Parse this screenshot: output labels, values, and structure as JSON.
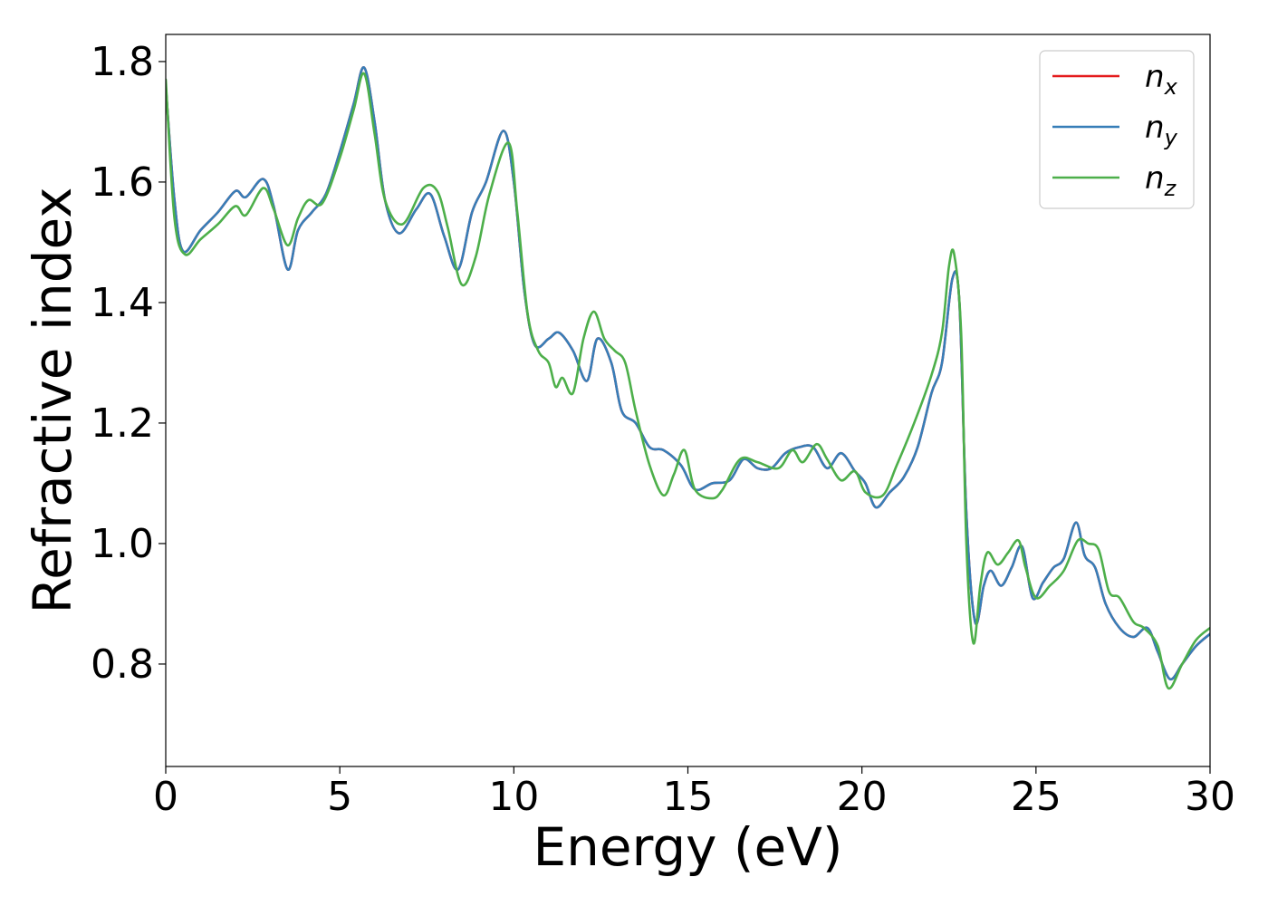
{
  "chart_data": {
    "type": "line",
    "title": "",
    "xlabel": "Energy (eV)",
    "ylabel": "Refractive index",
    "xlim": [
      0,
      30
    ],
    "ylim": [
      0.63,
      1.845
    ],
    "xticks": [
      0,
      5,
      10,
      15,
      20,
      25,
      30
    ],
    "xtick_labels": [
      "0",
      "5",
      "10",
      "15",
      "20",
      "25",
      "30"
    ],
    "yticks": [
      0.8,
      1.0,
      1.2,
      1.4,
      1.6,
      1.8
    ],
    "ytick_labels": [
      "0.8",
      "1.0",
      "1.2",
      "1.4",
      "1.6",
      "1.8"
    ],
    "grid": false,
    "legend_position": "top-right",
    "series": [
      {
        "name": "n",
        "subscript": "x",
        "color": "#e41a1c",
        "x": [
          0,
          0.25,
          0.5,
          1.0,
          1.5,
          2.0,
          2.3,
          2.8,
          3.1,
          3.5,
          3.8,
          4.2,
          4.6,
          5.0,
          5.4,
          5.7,
          6.0,
          6.3,
          6.7,
          7.2,
          7.6,
          8.0,
          8.4,
          8.8,
          9.2,
          9.7,
          10.0,
          10.3,
          10.6,
          11.0,
          11.3,
          11.7,
          12.1,
          12.4,
          12.8,
          13.1,
          13.5,
          13.9,
          14.3,
          14.8,
          15.2,
          15.7,
          16.2,
          16.6,
          17.0,
          17.4,
          17.8,
          18.2,
          18.6,
          19.0,
          19.4,
          19.8,
          20.1,
          20.4,
          20.8,
          21.2,
          21.6,
          22.0,
          22.3,
          22.6,
          22.8,
          23.0,
          23.25,
          23.5,
          23.7,
          24.0,
          24.3,
          24.6,
          24.9,
          25.2,
          25.5,
          25.8,
          26.15,
          26.4,
          26.7,
          27.0,
          27.4,
          27.8,
          28.2,
          28.5,
          28.85,
          29.2,
          29.6,
          30.0
        ],
        "y": [
          1.76,
          1.57,
          1.485,
          1.52,
          1.55,
          1.585,
          1.575,
          1.605,
          1.56,
          1.455,
          1.52,
          1.55,
          1.58,
          1.65,
          1.73,
          1.79,
          1.7,
          1.57,
          1.515,
          1.555,
          1.58,
          1.51,
          1.455,
          1.55,
          1.6,
          1.685,
          1.6,
          1.42,
          1.33,
          1.34,
          1.35,
          1.32,
          1.27,
          1.34,
          1.3,
          1.22,
          1.2,
          1.16,
          1.155,
          1.13,
          1.09,
          1.1,
          1.105,
          1.14,
          1.125,
          1.125,
          1.15,
          1.16,
          1.16,
          1.125,
          1.15,
          1.12,
          1.1,
          1.06,
          1.085,
          1.11,
          1.16,
          1.25,
          1.3,
          1.44,
          1.4,
          1.05,
          0.87,
          0.93,
          0.955,
          0.93,
          0.96,
          0.995,
          0.91,
          0.935,
          0.96,
          0.975,
          1.035,
          0.98,
          0.96,
          0.9,
          0.86,
          0.845,
          0.86,
          0.82,
          0.775,
          0.8,
          0.83,
          0.85
        ]
      },
      {
        "name": "n",
        "subscript": "y",
        "color": "#377eb8",
        "x": [
          0,
          0.25,
          0.5,
          1.0,
          1.5,
          2.0,
          2.3,
          2.8,
          3.1,
          3.5,
          3.8,
          4.2,
          4.6,
          5.0,
          5.4,
          5.7,
          6.0,
          6.3,
          6.7,
          7.2,
          7.6,
          8.0,
          8.4,
          8.8,
          9.2,
          9.7,
          10.0,
          10.3,
          10.6,
          11.0,
          11.3,
          11.7,
          12.1,
          12.4,
          12.8,
          13.1,
          13.5,
          13.9,
          14.3,
          14.8,
          15.2,
          15.7,
          16.2,
          16.6,
          17.0,
          17.4,
          17.8,
          18.2,
          18.6,
          19.0,
          19.4,
          19.8,
          20.1,
          20.4,
          20.8,
          21.2,
          21.6,
          22.0,
          22.3,
          22.6,
          22.8,
          23.0,
          23.25,
          23.5,
          23.7,
          24.0,
          24.3,
          24.6,
          24.9,
          25.2,
          25.5,
          25.8,
          26.15,
          26.4,
          26.7,
          27.0,
          27.4,
          27.8,
          28.2,
          28.5,
          28.85,
          29.2,
          29.6,
          30.0
        ],
        "y": [
          1.76,
          1.57,
          1.485,
          1.52,
          1.55,
          1.585,
          1.575,
          1.605,
          1.56,
          1.455,
          1.52,
          1.55,
          1.58,
          1.65,
          1.73,
          1.79,
          1.7,
          1.57,
          1.515,
          1.555,
          1.58,
          1.51,
          1.455,
          1.55,
          1.6,
          1.685,
          1.6,
          1.42,
          1.33,
          1.34,
          1.35,
          1.32,
          1.27,
          1.34,
          1.3,
          1.22,
          1.2,
          1.16,
          1.155,
          1.13,
          1.09,
          1.1,
          1.105,
          1.14,
          1.125,
          1.125,
          1.15,
          1.16,
          1.16,
          1.125,
          1.15,
          1.12,
          1.1,
          1.06,
          1.085,
          1.11,
          1.16,
          1.25,
          1.3,
          1.44,
          1.4,
          1.05,
          0.87,
          0.93,
          0.955,
          0.93,
          0.96,
          0.995,
          0.91,
          0.935,
          0.96,
          0.975,
          1.035,
          0.98,
          0.96,
          0.9,
          0.86,
          0.845,
          0.86,
          0.82,
          0.775,
          0.8,
          0.83,
          0.85
        ]
      },
      {
        "name": "n",
        "subscript": "z",
        "color": "#4daf4a",
        "x": [
          0,
          0.25,
          0.55,
          1.0,
          1.5,
          2.0,
          2.3,
          2.8,
          3.1,
          3.5,
          3.8,
          4.1,
          4.5,
          5.0,
          5.4,
          5.7,
          6.0,
          6.3,
          6.8,
          7.4,
          7.8,
          8.1,
          8.5,
          8.9,
          9.3,
          9.85,
          10.1,
          10.4,
          10.7,
          11.0,
          11.2,
          11.4,
          11.7,
          12.0,
          12.3,
          12.6,
          12.9,
          13.2,
          13.5,
          13.9,
          14.3,
          14.6,
          14.9,
          15.2,
          15.7,
          16.0,
          16.5,
          17.0,
          17.6,
          18.0,
          18.3,
          18.7,
          19.0,
          19.4,
          19.8,
          20.1,
          20.6,
          21.0,
          21.5,
          22.0,
          22.3,
          22.5,
          22.65,
          22.85,
          23.0,
          23.2,
          23.4,
          23.6,
          23.9,
          24.2,
          24.5,
          24.7,
          25.0,
          25.4,
          25.8,
          26.2,
          26.5,
          26.8,
          27.1,
          27.4,
          27.8,
          28.1,
          28.5,
          28.8,
          29.2,
          29.6,
          30.0
        ],
        "y": [
          1.77,
          1.54,
          1.48,
          1.505,
          1.53,
          1.56,
          1.545,
          1.59,
          1.555,
          1.495,
          1.54,
          1.57,
          1.565,
          1.64,
          1.72,
          1.78,
          1.68,
          1.57,
          1.53,
          1.59,
          1.585,
          1.525,
          1.43,
          1.475,
          1.58,
          1.665,
          1.55,
          1.38,
          1.32,
          1.3,
          1.26,
          1.275,
          1.25,
          1.34,
          1.385,
          1.34,
          1.32,
          1.3,
          1.22,
          1.13,
          1.08,
          1.115,
          1.155,
          1.09,
          1.075,
          1.09,
          1.14,
          1.135,
          1.125,
          1.155,
          1.135,
          1.165,
          1.14,
          1.105,
          1.12,
          1.085,
          1.08,
          1.13,
          1.2,
          1.28,
          1.35,
          1.46,
          1.48,
          1.35,
          1.0,
          0.835,
          0.93,
          0.985,
          0.965,
          0.985,
          1.005,
          0.96,
          0.91,
          0.93,
          0.955,
          1.005,
          1.0,
          0.99,
          0.92,
          0.91,
          0.87,
          0.86,
          0.83,
          0.76,
          0.8,
          0.84,
          0.86
        ]
      }
    ]
  }
}
